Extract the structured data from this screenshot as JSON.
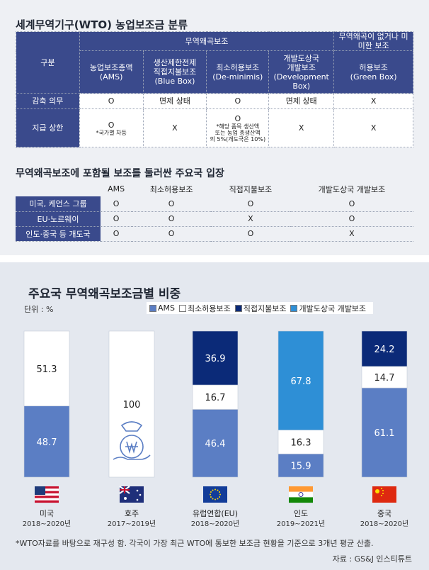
{
  "top_title": "세계무역기구(WTO) 농업보조금 분류",
  "table1": {
    "corner": "구분",
    "group_a": "무역왜곡보조",
    "group_b": "무역왜곡이 없거나 미미한 보조",
    "cols": [
      {
        "l1": "농업보조총액",
        "l2": "(AMS)"
      },
      {
        "l1": "생산제한전제",
        "l2": "직접지불보조",
        "l3": "(Blue Box)"
      },
      {
        "l1": "최소허용보조",
        "l2": "(De-minimis)"
      },
      {
        "l1": "개발도상국",
        "l2": "개발보조",
        "l3": "(Development Box)"
      },
      {
        "l1": "허용보조",
        "l2": "(Green Box)"
      }
    ],
    "row1": {
      "label": "감축 의무",
      "cells": [
        "O",
        "면제 상태",
        "O",
        "면제 상태",
        "X"
      ]
    },
    "row2": {
      "label": "지급 상한",
      "cells": [
        "O",
        "X",
        "O",
        "X",
        "X"
      ],
      "note1": "*국가별 차등",
      "note3a": "*해당 품목 생산액",
      "note3b": "또는 농업 총생산액",
      "note3c": "의 5%(개도국은 10%)"
    }
  },
  "table2": {
    "title": "무역왜곡보조에 포함될 보조를 둘러싼 주요국 입장",
    "cols": [
      "AMS",
      "최소허용보조",
      "직접지불보조",
      "개발도상국 개발보조"
    ],
    "rows": [
      {
        "label": "미국, 케언스 그룹",
        "cells": [
          "O",
          "O",
          "O",
          "O"
        ]
      },
      {
        "label": "EU·노르웨이",
        "cells": [
          "O",
          "O",
          "X",
          "O"
        ]
      },
      {
        "label": "인도·중국 등 개도국",
        "cells": [
          "O",
          "O",
          "O",
          "X"
        ]
      }
    ]
  },
  "chart_data": {
    "type": "bar",
    "stacked": true,
    "title": "주요국 무역왜곡보조금별 비중",
    "unit": "단위 : %",
    "ylim": [
      0,
      100
    ],
    "categories": [
      "미국",
      "호주",
      "유럽연합(EU)",
      "인도",
      "중국"
    ],
    "periods": [
      "2018~2020년",
      "2017~2019년",
      "2018~2020년",
      "2019~2021년",
      "2018~2020년"
    ],
    "series": [
      {
        "name": "AMS",
        "color": "#5b7ec4",
        "values": [
          48.7,
          0,
          46.4,
          15.9,
          61.1
        ]
      },
      {
        "name": "최소허용보조",
        "color": "#ffffff",
        "values": [
          51.3,
          100,
          16.7,
          16.3,
          14.7
        ]
      },
      {
        "name": "직접지불보조",
        "color": "#0b2a78",
        "values": [
          0,
          0,
          36.9,
          0,
          24.2
        ]
      },
      {
        "name": "개발도상국 개발보조",
        "color": "#2e8fd6",
        "values": [
          0,
          0,
          0,
          67.8,
          0
        ]
      }
    ],
    "label_text": [
      [
        "48.7",
        "51.3",
        "",
        ""
      ],
      [
        "",
        "100",
        "",
        ""
      ],
      [
        "46.4",
        "16.7",
        "36.9",
        ""
      ],
      [
        "15.9",
        "16.3",
        "",
        "67.8"
      ],
      [
        "61.1",
        "14.7",
        "24.2",
        ""
      ]
    ],
    "icons": [
      "us-flag-icon",
      "australia-flag-icon",
      "eu-flag-icon",
      "india-flag-icon",
      "china-flag-icon"
    ]
  },
  "footnote": "*WTO자료를 바탕으로 재구성 함. 각국이 가장 최근 WTO에 통보한 보조금 현황을 기준으로 3개년 평균 산출.",
  "source": "자료 : GS&J 인스티튜트"
}
